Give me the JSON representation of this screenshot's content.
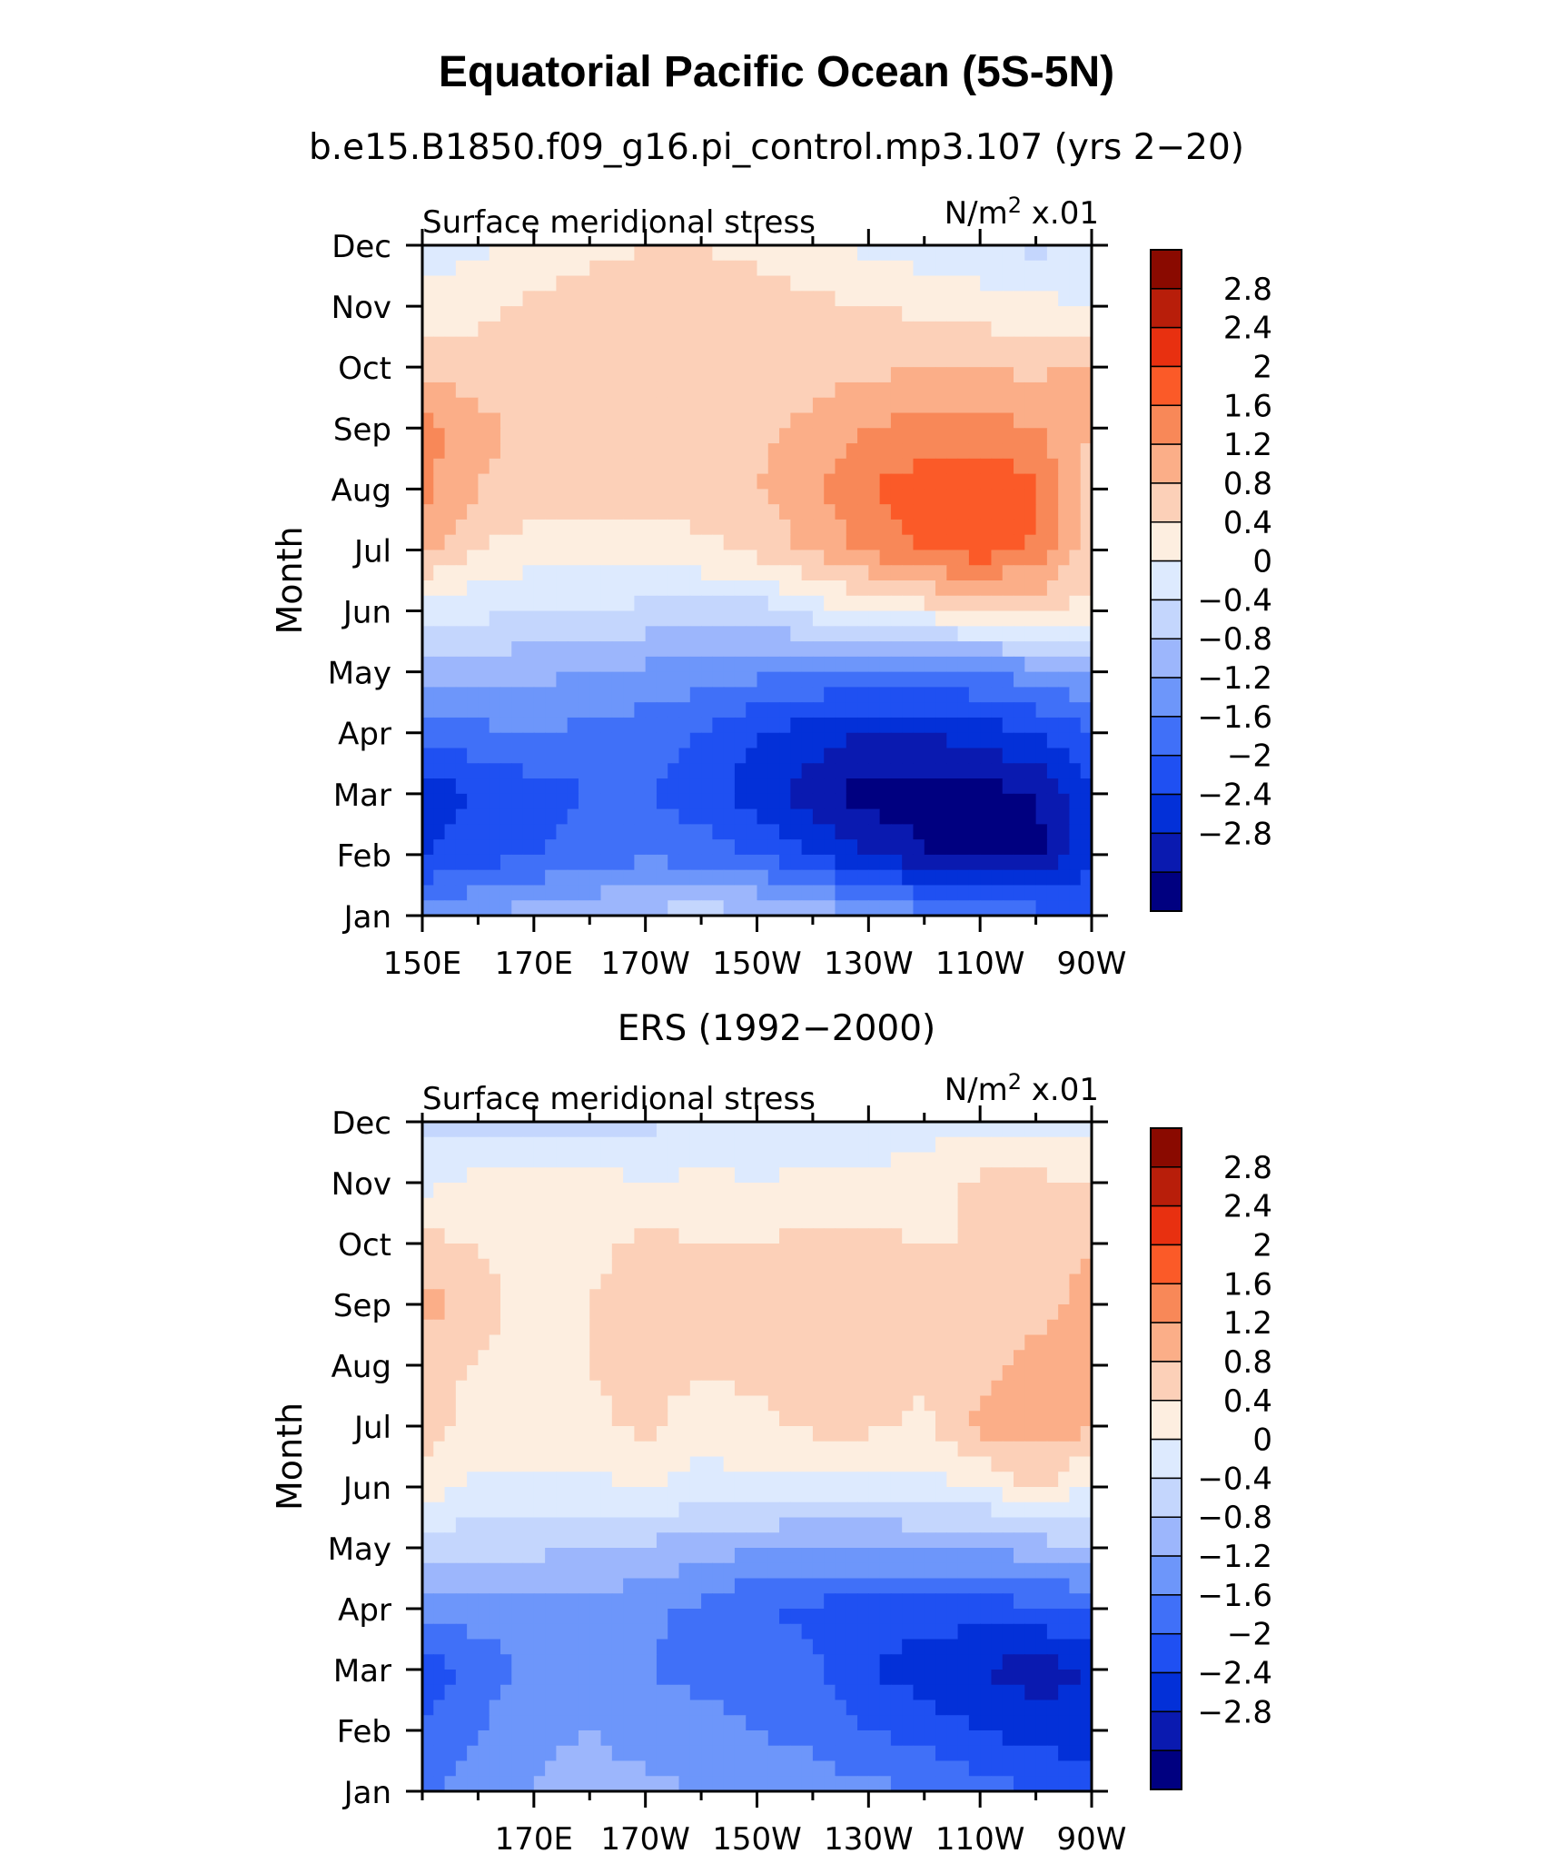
{
  "title": "Equatorial Pacific Ocean (5S-5N)",
  "palette": {
    "text": "#000000",
    "background": "#ffffff",
    "colorbar": [
      "#000080",
      "#0a1ab0",
      "#0330d8",
      "#1f50f2",
      "#4070f8",
      "#6d96fa",
      "#9cb6fc",
      "#c4d6fd",
      "#ddeafe",
      "#fdeee0",
      "#fcd0b8",
      "#fbae88",
      "#f88858",
      "#fb5a28",
      "#e83010",
      "#b81e0a",
      "#8a0a00"
    ]
  },
  "chart_data": [
    {
      "type": "heatmap",
      "panel_title": "b.e15.B1850.f09_g16.pi_control.mp3.107 (yrs 2−20)",
      "left_label": "Surface meridional stress",
      "right_label_base": "N/m",
      "right_label_sup": "2",
      "right_label_scale": "x.01",
      "ylabel": "Month",
      "x_range": [
        150,
        270
      ],
      "x_units": "degrees east",
      "xticks": [
        150,
        170,
        190,
        210,
        230,
        250,
        270
      ],
      "xtick_labels": [
        "150E",
        "170E",
        "170W",
        "150W",
        "130W",
        "110W",
        "90W"
      ],
      "y_labels": [
        "Jan",
        "Feb",
        "Mar",
        "Apr",
        "May",
        "Jun",
        "Jul",
        "Aug",
        "Sep",
        "Oct",
        "Nov",
        "Dec"
      ],
      "colorbar_levels": [
        -2.8,
        -2.4,
        -2,
        -1.6,
        -1.2,
        -0.8,
        -0.4,
        0,
        0.4,
        0.8,
        1.2,
        1.6,
        2,
        2.4,
        2.8
      ],
      "colorbar_labels": [
        "2.8",
        "2.4",
        "2",
        "1.6",
        "1.2",
        "0.8",
        "0.4",
        "0",
        "−0.4",
        "−0.8",
        "−1.2",
        "−1.6",
        "−2",
        "−2.4",
        "−2.8"
      ],
      "x_grid": [
        150,
        160,
        170,
        180,
        190,
        200,
        210,
        220,
        230,
        240,
        250,
        260,
        270
      ],
      "values": [
        [
          -1.0,
          -0.8,
          -0.6,
          -0.5,
          -0.3,
          -0.2,
          -0.3,
          -0.5,
          -0.8,
          -1.0,
          -1.2,
          -1.4,
          -1.6
        ],
        [
          -2.0,
          -1.8,
          -1.6,
          -1.4,
          -1.3,
          -1.4,
          -1.6,
          -2.0,
          -2.4,
          -2.8,
          -3.0,
          -3.0,
          -2.0
        ],
        [
          -2.2,
          -2.0,
          -1.8,
          -1.6,
          -1.6,
          -1.8,
          -2.2,
          -2.6,
          -3.0,
          -3.0,
          -3.0,
          -2.8,
          -2.0
        ],
        [
          -1.4,
          -1.3,
          -1.2,
          -1.3,
          -1.4,
          -1.6,
          -2.0,
          -2.2,
          -2.4,
          -2.4,
          -2.2,
          -2.0,
          -1.6
        ],
        [
          -0.6,
          -0.6,
          -0.7,
          -0.8,
          -0.9,
          -1.0,
          -1.1,
          -1.2,
          -1.3,
          -1.3,
          -1.2,
          -1.0,
          -0.8
        ],
        [
          0.1,
          0.1,
          0.0,
          0.0,
          -0.1,
          -0.1,
          -0.2,
          0.2,
          0.4,
          0.6,
          0.8,
          0.9,
          0.6
        ],
        [
          1.4,
          0.8,
          0.6,
          0.6,
          0.6,
          0.7,
          0.9,
          1.3,
          1.7,
          2.1,
          2.2,
          1.9,
          1.0
        ],
        [
          1.7,
          1.2,
          1.0,
          1.0,
          1.0,
          1.0,
          1.2,
          1.5,
          2.0,
          2.2,
          2.3,
          2.1,
          1.0
        ],
        [
          1.8,
          1.3,
          1.1,
          1.0,
          1.0,
          1.0,
          1.1,
          1.3,
          1.6,
          1.8,
          1.8,
          1.6,
          1.2
        ],
        [
          1.0,
          1.0,
          1.0,
          1.0,
          1.0,
          1.0,
          1.0,
          1.0,
          1.1,
          1.2,
          1.2,
          1.1,
          1.3
        ],
        [
          0.5,
          0.7,
          0.9,
          1.0,
          1.0,
          1.0,
          1.0,
          0.9,
          0.8,
          0.7,
          0.6,
          0.5,
          0.4
        ],
        [
          0.2,
          0.3,
          0.5,
          0.7,
          0.8,
          0.8,
          0.7,
          0.5,
          0.3,
          0.2,
          0.1,
          -0.1,
          0.1
        ]
      ]
    },
    {
      "type": "heatmap",
      "panel_title": "ERS (1992−2000)",
      "left_label": "Surface meridional stress",
      "right_label_base": "N/m",
      "right_label_sup": "2",
      "right_label_scale": "x.01",
      "ylabel": "Month",
      "x_range": [
        150,
        270
      ],
      "x_units": "degrees east",
      "xticks": [
        170,
        190,
        210,
        230,
        250,
        270
      ],
      "xtick_labels": [
        "170E",
        "170W",
        "150W",
        "130W",
        "110W",
        "90W"
      ],
      "y_labels": [
        "Jan",
        "Feb",
        "Mar",
        "Apr",
        "May",
        "Jun",
        "Jul",
        "Aug",
        "Sep",
        "Oct",
        "Nov",
        "Dec"
      ],
      "colorbar_levels": [
        -2.8,
        -2.4,
        -2,
        -1.6,
        -1.2,
        -0.8,
        -0.4,
        0,
        0.4,
        0.8,
        1.2,
        1.6,
        2,
        2.4,
        2.8
      ],
      "colorbar_labels": [
        "2.8",
        "2.4",
        "2",
        "1.6",
        "1.2",
        "0.8",
        "0.4",
        "0",
        "−0.4",
        "−0.8",
        "−1.2",
        "−1.6",
        "−2",
        "−2.4",
        "−2.8"
      ],
      "x_grid": [
        150,
        160,
        170,
        180,
        190,
        200,
        210,
        220,
        230,
        240,
        250,
        260,
        270
      ],
      "values": [
        [
          -1.3,
          -1.0,
          -0.8,
          -0.6,
          -0.7,
          -0.8,
          -1.0,
          -1.0,
          -1.1,
          -1.2,
          -1.4,
          -1.6,
          -1.8
        ],
        [
          -1.6,
          -1.2,
          -0.9,
          -0.8,
          -1.0,
          -1.1,
          -1.2,
          -1.3,
          -1.6,
          -1.8,
          -2.0,
          -2.2,
          -2.2
        ],
        [
          -1.8,
          -1.5,
          -1.0,
          -0.9,
          -1.2,
          -1.3,
          -1.3,
          -1.5,
          -2.0,
          -2.2,
          -2.4,
          -2.6,
          -2.4
        ],
        [
          -1.0,
          -1.0,
          -0.9,
          -0.9,
          -1.1,
          -1.3,
          -1.6,
          -1.7,
          -1.8,
          -1.8,
          -1.8,
          -1.7,
          -1.6
        ],
        [
          -0.1,
          -0.3,
          -0.3,
          -0.4,
          -0.5,
          -0.6,
          -0.8,
          -0.8,
          -0.8,
          -0.8,
          -0.8,
          -0.6,
          -0.4
        ],
        [
          0.6,
          0.3,
          0.3,
          0.3,
          0.4,
          0.3,
          0.3,
          0.2,
          0.2,
          0.3,
          0.4,
          0.9,
          0.3
        ],
        [
          1.0,
          0.6,
          0.6,
          0.7,
          0.9,
          0.5,
          0.7,
          0.9,
          0.9,
          0.7,
          1.3,
          1.4,
          1.3
        ],
        [
          0.9,
          0.8,
          0.6,
          0.8,
          1.0,
          0.9,
          0.9,
          1.0,
          1.0,
          0.9,
          1.1,
          1.3,
          1.3
        ],
        [
          1.4,
          0.9,
          0.7,
          0.8,
          1.0,
          1.0,
          0.9,
          1.0,
          1.0,
          0.9,
          0.9,
          1.1,
          1.3
        ],
        [
          0.9,
          0.8,
          0.6,
          0.7,
          0.9,
          0.8,
          0.8,
          0.9,
          0.9,
          0.8,
          0.8,
          1.0,
          1.2
        ],
        [
          0.3,
          0.5,
          0.5,
          0.6,
          0.4,
          0.5,
          0.4,
          0.5,
          0.5,
          0.6,
          0.9,
          0.9,
          0.8
        ],
        [
          -0.2,
          -0.1,
          -0.1,
          -0.2,
          -0.1,
          0.1,
          0.1,
          0.1,
          0.1,
          0.2,
          0.3,
          0.2,
          0.2
        ]
      ]
    }
  ]
}
